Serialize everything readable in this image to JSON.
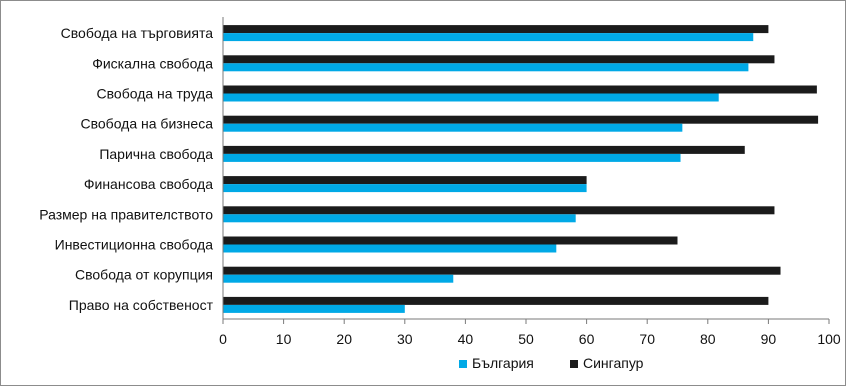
{
  "chart_data": {
    "type": "bar",
    "orientation": "horizontal",
    "categories": [
      "Свобода на търговията",
      "Фискална свобода",
      "Свобода на труда",
      "Свобода на бизнеса",
      "Парична свобода",
      "Финансова свобода",
      "Размер на правителството",
      "Инвестиционна свобода",
      "Свобода от корупция",
      "Право на собственост"
    ],
    "series": [
      {
        "name": "България",
        "color": "#00a9e6",
        "values": [
          87.5,
          86.7,
          81.8,
          75.8,
          75.5,
          60,
          58.2,
          55,
          38,
          30
        ]
      },
      {
        "name": "Сингапур",
        "color": "#1b1b1b",
        "values": [
          90,
          91,
          98,
          98.2,
          86.1,
          60,
          91,
          75,
          92,
          90
        ]
      }
    ],
    "x_ticks": [
      "0",
      "10",
      "20",
      "30",
      "40",
      "50",
      "60",
      "70",
      "80",
      "90",
      "100"
    ],
    "xlim": [
      0,
      100
    ],
    "grid": false,
    "legend": "bottom-center",
    "title": "",
    "xlabel": "",
    "ylabel": ""
  }
}
